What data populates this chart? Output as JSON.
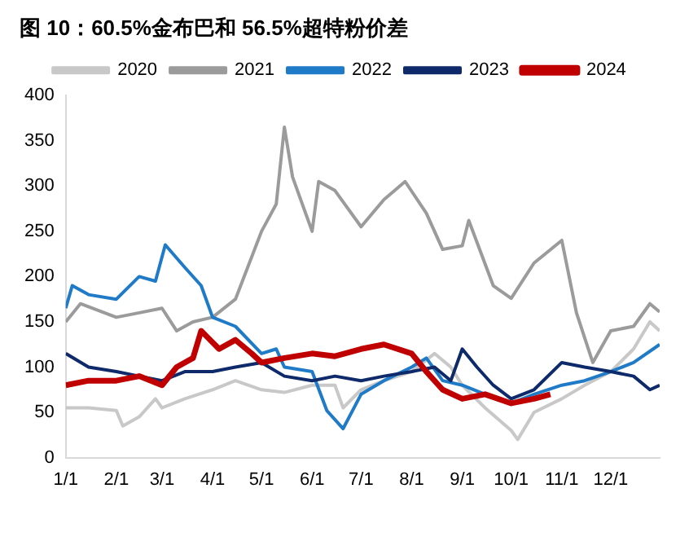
{
  "chart_data": {
    "type": "line",
    "title": "图 10：60.5%金布巴和 56.5%超特粉价差",
    "xlim": [
      "--01-01",
      "--12-31"
    ],
    "xticks": [
      {
        "value": "--01-01",
        "label": "1/1"
      },
      {
        "value": "--02-01",
        "label": "2/1"
      },
      {
        "value": "--03-01",
        "label": "3/1"
      },
      {
        "value": "--04-01",
        "label": "4/1"
      },
      {
        "value": "--05-01",
        "label": "5/1"
      },
      {
        "value": "--06-01",
        "label": "6/1"
      },
      {
        "value": "--07-01",
        "label": "7/1"
      },
      {
        "value": "--08-01",
        "label": "8/1"
      },
      {
        "value": "--09-01",
        "label": "9/1"
      },
      {
        "value": "--10-01",
        "label": "10/1"
      },
      {
        "value": "--11-01",
        "label": "11/1"
      },
      {
        "value": "--12-01",
        "label": "12/1"
      }
    ],
    "ylim": [
      0,
      400
    ],
    "yticks": [
      0,
      50,
      100,
      150,
      200,
      250,
      300,
      350,
      400
    ],
    "grid": false,
    "legend": "top",
    "marker": "none",
    "line_style": "solid",
    "series": [
      {
        "name": "2020",
        "color": "#c8c8c8",
        "x": [
          "--01-01",
          "--01-15",
          "--02-01",
          "--02-05",
          "--02-15",
          "--02-25",
          "--03-01",
          "--03-15",
          "--04-01",
          "--04-15",
          "--05-01",
          "--05-15",
          "--06-01",
          "--06-15",
          "--06-20",
          "--07-01",
          "--07-15",
          "--08-01",
          "--08-15",
          "--08-25",
          "--09-01",
          "--09-15",
          "--10-01",
          "--10-05",
          "--10-15",
          "--11-01",
          "--11-15",
          "--12-01",
          "--12-15",
          "--12-25",
          "--12-31"
        ],
        "values": [
          55,
          55,
          52,
          35,
          45,
          65,
          55,
          65,
          75,
          85,
          75,
          72,
          80,
          80,
          55,
          75,
          85,
          95,
          115,
          100,
          80,
          55,
          30,
          20,
          50,
          65,
          80,
          95,
          120,
          150,
          140
        ]
      },
      {
        "name": "2021",
        "color": "#9b9b9b",
        "x": [
          "--01-01",
          "--01-10",
          "--02-01",
          "--02-15",
          "--03-01",
          "--03-10",
          "--03-20",
          "--04-01",
          "--04-15",
          "--05-01",
          "--05-10",
          "--05-15",
          "--05-20",
          "--06-01",
          "--06-05",
          "--06-15",
          "--07-01",
          "--07-15",
          "--07-28",
          "--08-10",
          "--08-20",
          "--09-01",
          "--09-05",
          "--09-20",
          "--10-01",
          "--10-15",
          "--11-01",
          "--11-10",
          "--11-20",
          "--12-01",
          "--12-15",
          "--12-25",
          "--12-31"
        ],
        "values": [
          150,
          170,
          155,
          160,
          165,
          140,
          150,
          155,
          175,
          250,
          280,
          365,
          310,
          250,
          305,
          295,
          255,
          285,
          305,
          270,
          230,
          234,
          262,
          190,
          176,
          215,
          240,
          160,
          105,
          140,
          145,
          170,
          161
        ]
      },
      {
        "name": "2022",
        "color": "#1f7bc8",
        "x": [
          "--01-01",
          "--01-05",
          "--01-15",
          "--02-01",
          "--02-15",
          "--02-25",
          "--03-03",
          "--03-15",
          "--03-25",
          "--04-01",
          "--04-15",
          "--05-01",
          "--05-10",
          "--05-15",
          "--06-01",
          "--06-10",
          "--06-20",
          "--07-01",
          "--07-15",
          "--08-01",
          "--08-10",
          "--08-20",
          "--09-01",
          "--09-15",
          "--10-01",
          "--10-15",
          "--11-01",
          "--11-15",
          "--12-01",
          "--12-15",
          "--12-31"
        ],
        "values": [
          165,
          190,
          180,
          175,
          200,
          195,
          235,
          210,
          190,
          155,
          145,
          115,
          120,
          100,
          95,
          52,
          32,
          70,
          85,
          100,
          110,
          85,
          80,
          70,
          60,
          70,
          80,
          85,
          95,
          105,
          125
        ]
      },
      {
        "name": "2023",
        "color": "#0e2a6b",
        "x": [
          "--01-01",
          "--01-15",
          "--02-01",
          "--02-15",
          "--03-01",
          "--03-15",
          "--04-01",
          "--04-15",
          "--05-01",
          "--05-15",
          "--06-01",
          "--06-15",
          "--07-01",
          "--07-15",
          "--08-01",
          "--08-15",
          "--08-25",
          "--09-01",
          "--09-10",
          "--09-20",
          "--10-01",
          "--10-15",
          "--11-01",
          "--11-15",
          "--12-01",
          "--12-15",
          "--12-25",
          "--12-31"
        ],
        "values": [
          115,
          100,
          95,
          90,
          85,
          95,
          95,
          100,
          105,
          90,
          85,
          90,
          85,
          90,
          95,
          100,
          85,
          120,
          100,
          80,
          65,
          75,
          105,
          100,
          95,
          90,
          75,
          80
        ]
      },
      {
        "name": "2024",
        "color": "#c00000",
        "x": [
          "--01-01",
          "--01-15",
          "--02-01",
          "--02-15",
          "--03-01",
          "--03-10",
          "--03-20",
          "--03-25",
          "--04-05",
          "--04-15",
          "--04-25",
          "--05-01",
          "--05-15",
          "--06-01",
          "--06-15",
          "--07-01",
          "--07-15",
          "--08-01",
          "--08-10",
          "--08-20",
          "--09-01",
          "--09-15",
          "--10-01",
          "--10-15",
          "--10-25"
        ],
        "values": [
          80,
          85,
          85,
          90,
          80,
          100,
          110,
          140,
          120,
          130,
          115,
          105,
          110,
          115,
          112,
          120,
          125,
          115,
          95,
          75,
          65,
          70,
          60,
          65,
          70
        ]
      }
    ]
  }
}
